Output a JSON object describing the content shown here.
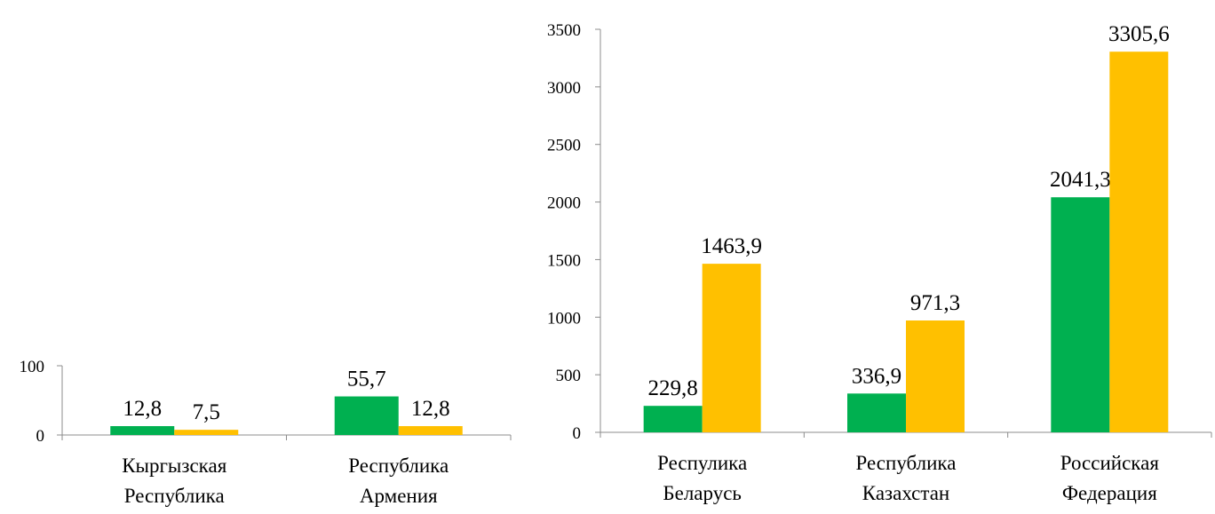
{
  "colors": {
    "series1": "#00B050",
    "series2": "#FFC000",
    "axis": "#8C8C8C"
  },
  "chart_data": [
    {
      "type": "bar",
      "categories": [
        "Кыргызская Республика",
        "Республика Армения"
      ],
      "category_lines": [
        [
          "Кыргызская",
          "Республика"
        ],
        [
          "Республика",
          "Армения"
        ]
      ],
      "series": [
        {
          "values": [
            12.8,
            55.7
          ],
          "labels": [
            "12,8",
            "55,7"
          ],
          "color": "#00B050"
        },
        {
          "values": [
            7.5,
            12.8
          ],
          "labels": [
            "7,5",
            "12,8"
          ],
          "color": "#FFC000"
        }
      ],
      "yticks": [
        0,
        100
      ],
      "ylim": [
        0,
        100
      ],
      "grid": false,
      "legend": "none"
    },
    {
      "type": "bar",
      "categories": [
        "Респулика Беларусь",
        "Республика Казахстан",
        "Российская Федерация"
      ],
      "category_lines": [
        [
          "Респулика",
          "Беларусь"
        ],
        [
          "Республика",
          "Казахстан"
        ],
        [
          "Российская",
          "Федерация"
        ]
      ],
      "series": [
        {
          "values": [
            229.8,
            336.9,
            2041.3
          ],
          "labels": [
            "229,8",
            "336,9",
            "2041,3"
          ],
          "color": "#00B050"
        },
        {
          "values": [
            1463.9,
            971.3,
            3305.6
          ],
          "labels": [
            "1463,9",
            "971,3",
            "3305,6"
          ],
          "color": "#FFC000"
        }
      ],
      "yticks": [
        0,
        500,
        1000,
        1500,
        2000,
        2500,
        3000,
        3500
      ],
      "ylim": [
        0,
        3500
      ],
      "grid": false,
      "legend": "none"
    }
  ]
}
